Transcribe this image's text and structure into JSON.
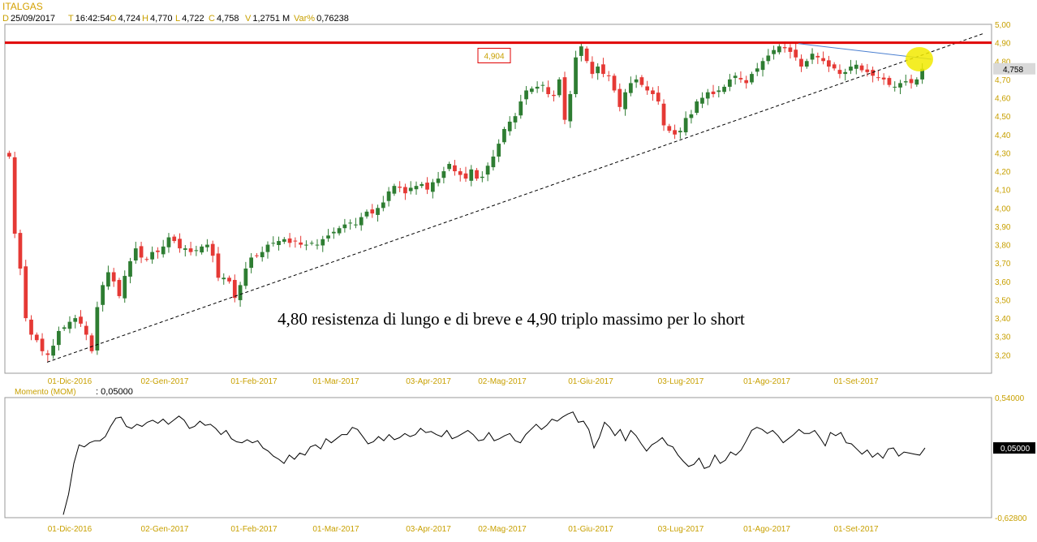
{
  "header": {
    "symbol": "ITALGAS",
    "d_label": "D",
    "d_value": "25/09/2017",
    "t_label": "T",
    "t_value": "16:42:54",
    "o_label": "O",
    "o_value": "4,724",
    "h_label": "H",
    "h_value": "4,770",
    "l_label": "L",
    "l_value": "4,722",
    "c_label": "C",
    "c_value": "4,758",
    "v_label": "V",
    "v_value": "1,2751 M",
    "var_label": "Var%",
    "var_value": "0,76238"
  },
  "colors": {
    "up": "#2e7d32",
    "down": "#e53935",
    "resistance": "#e00000",
    "trendline": "#000000",
    "blue_line": "#4a7fd0",
    "highlight": "#f2ea00",
    "tick_text": "#c8a000"
  },
  "chart_data": [
    {
      "type": "candlestick",
      "ylim": [
        3.1,
        5.0
      ],
      "ytick_labels": [
        "5,00",
        "4,90",
        "4,80",
        "4,70",
        "4,60",
        "4,50",
        "4,40",
        "4,30",
        "4,20",
        "4,10",
        "4,00",
        "3,90",
        "3,80",
        "3,70",
        "3,60",
        "3,50",
        "3,40",
        "3,30",
        "3,20"
      ],
      "ytick_values": [
        5.0,
        4.9,
        4.8,
        4.7,
        4.6,
        4.5,
        4.4,
        4.3,
        4.2,
        4.1,
        4.0,
        3.9,
        3.8,
        3.7,
        3.6,
        3.5,
        3.4,
        3.3,
        3.2
      ],
      "x_labels": [
        "01-Dic-2016",
        "02-Gen-2017",
        "01-Feb-2017",
        "01-Mar-2017",
        "03-Apr-2017",
        "02-Mag-2017",
        "01-Giu-2017",
        "03-Lug-2017",
        "01-Ago-2017",
        "01-Set-2017"
      ],
      "last_price_label": "4,758",
      "last_price": 4.758,
      "resistance_level": 4.9,
      "resistance_box_label": "4,904",
      "annotation": "4,80 resistenza di lungo e di breve e 4,90 triplo massimo per lo short",
      "trendline": [
        [
          0.0,
          3.16
        ],
        [
          1.0,
          4.95
        ]
      ],
      "close": [
        4.28,
        3.86,
        3.67,
        3.4,
        3.31,
        3.28,
        3.22,
        3.2,
        3.25,
        3.33,
        3.35,
        3.38,
        3.4,
        3.37,
        3.31,
        3.22,
        3.46,
        3.58,
        3.65,
        3.6,
        3.52,
        3.63,
        3.71,
        3.78,
        3.73,
        3.72,
        3.76,
        3.76,
        3.79,
        3.84,
        3.82,
        3.78,
        3.78,
        3.76,
        3.77,
        3.79,
        3.8,
        3.74,
        3.62,
        3.62,
        3.6,
        3.51,
        3.58,
        3.67,
        3.73,
        3.74,
        3.76,
        3.8,
        3.81,
        3.82,
        3.83,
        3.81,
        3.82,
        3.8,
        3.8,
        3.81,
        3.8,
        3.83,
        3.85,
        3.87,
        3.89,
        3.91,
        3.92,
        3.91,
        3.95,
        3.98,
        3.97,
        4.0,
        4.03,
        4.09,
        4.12,
        4.11,
        4.08,
        4.11,
        4.12,
        4.13,
        4.1,
        4.14,
        4.16,
        4.2,
        4.24,
        4.2,
        4.18,
        4.16,
        4.21,
        4.16,
        4.17,
        4.23,
        4.28,
        4.35,
        4.43,
        4.47,
        4.5,
        4.58,
        4.64,
        4.65,
        4.66,
        4.67,
        4.62,
        4.61,
        4.7,
        4.48,
        4.62,
        4.82,
        4.88,
        4.8,
        4.73,
        4.77,
        4.73,
        4.72,
        4.64,
        4.55,
        4.63,
        4.68,
        4.7,
        4.67,
        4.64,
        4.62,
        4.58,
        4.45,
        4.42,
        4.4,
        4.42,
        4.49,
        4.51,
        4.58,
        4.6,
        4.63,
        4.62,
        4.64,
        4.66,
        4.7,
        4.72,
        4.7,
        4.68,
        4.73,
        4.76,
        4.8,
        4.83,
        4.86,
        4.88,
        4.87,
        4.85,
        4.82,
        4.77,
        4.8,
        4.84,
        4.82,
        4.8,
        4.77,
        4.76,
        4.73,
        4.74,
        4.77,
        4.78,
        4.75,
        4.74,
        4.72,
        4.71,
        4.7,
        4.67,
        4.66,
        4.68,
        4.69,
        4.68,
        4.7,
        4.758
      ]
    },
    {
      "type": "line",
      "title": "Momento (MOM)",
      "title_value": ": 0,05000",
      "ylim": [
        -0.6282,
        0.54
      ],
      "ytick_labels": [
        "0,54000",
        "-0,62800"
      ],
      "ytick_values": [
        0.54,
        -0.628
      ],
      "last_value_label": "0,05000",
      "last_value": 0.05,
      "x_labels": [
        "01-Dic-2016",
        "02-Gen-2017",
        "01-Feb-2017",
        "01-Mar-2017",
        "03-Apr-2017",
        "02-Mag-2017",
        "01-Giu-2017",
        "03-Lug-2017",
        "01-Ago-2017",
        "01-Set-2017"
      ],
      "values": [
        -0.6,
        -0.4,
        -0.1,
        0.08,
        0.06,
        0.1,
        0.12,
        0.12,
        0.16,
        0.26,
        0.34,
        0.35,
        0.26,
        0.24,
        0.28,
        0.26,
        0.3,
        0.32,
        0.29,
        0.33,
        0.28,
        0.32,
        0.36,
        0.32,
        0.24,
        0.26,
        0.31,
        0.27,
        0.28,
        0.24,
        0.18,
        0.22,
        0.14,
        0.11,
        0.1,
        0.13,
        0.1,
        0.12,
        0.05,
        0.02,
        -0.03,
        -0.06,
        -0.1,
        -0.02,
        -0.06,
        0.0,
        -0.02,
        0.06,
        0.08,
        0.04,
        0.14,
        0.1,
        0.14,
        0.18,
        0.18,
        0.25,
        0.23,
        0.16,
        0.09,
        0.11,
        0.16,
        0.12,
        0.18,
        0.13,
        0.15,
        0.19,
        0.16,
        0.18,
        0.24,
        0.2,
        0.21,
        0.18,
        0.16,
        0.22,
        0.14,
        0.16,
        0.19,
        0.22,
        0.18,
        0.12,
        0.13,
        0.2,
        0.12,
        0.14,
        0.17,
        0.19,
        0.12,
        0.1,
        0.18,
        0.23,
        0.28,
        0.23,
        0.27,
        0.33,
        0.31,
        0.35,
        0.38,
        0.4,
        0.3,
        0.31,
        0.23,
        0.05,
        0.15,
        0.3,
        0.25,
        0.17,
        0.23,
        0.12,
        0.22,
        0.17,
        0.09,
        0.02,
        0.08,
        0.11,
        0.15,
        0.08,
        0.06,
        -0.02,
        -0.08,
        -0.13,
        -0.11,
        -0.05,
        -0.15,
        -0.13,
        -0.02,
        -0.1,
        -0.07,
        0.01,
        -0.02,
        0.03,
        0.12,
        0.22,
        0.25,
        0.23,
        0.19,
        0.22,
        0.17,
        0.1,
        0.14,
        0.18,
        0.23,
        0.19,
        0.19,
        0.22,
        0.15,
        0.07,
        0.2,
        0.17,
        0.2,
        0.1,
        0.09,
        0.04,
        -0.01,
        0.03,
        -0.04,
        0.0,
        -0.05,
        0.04,
        0.05,
        -0.03,
        0.01,
        0.0,
        -0.01,
        -0.02,
        0.05
      ]
    }
  ]
}
